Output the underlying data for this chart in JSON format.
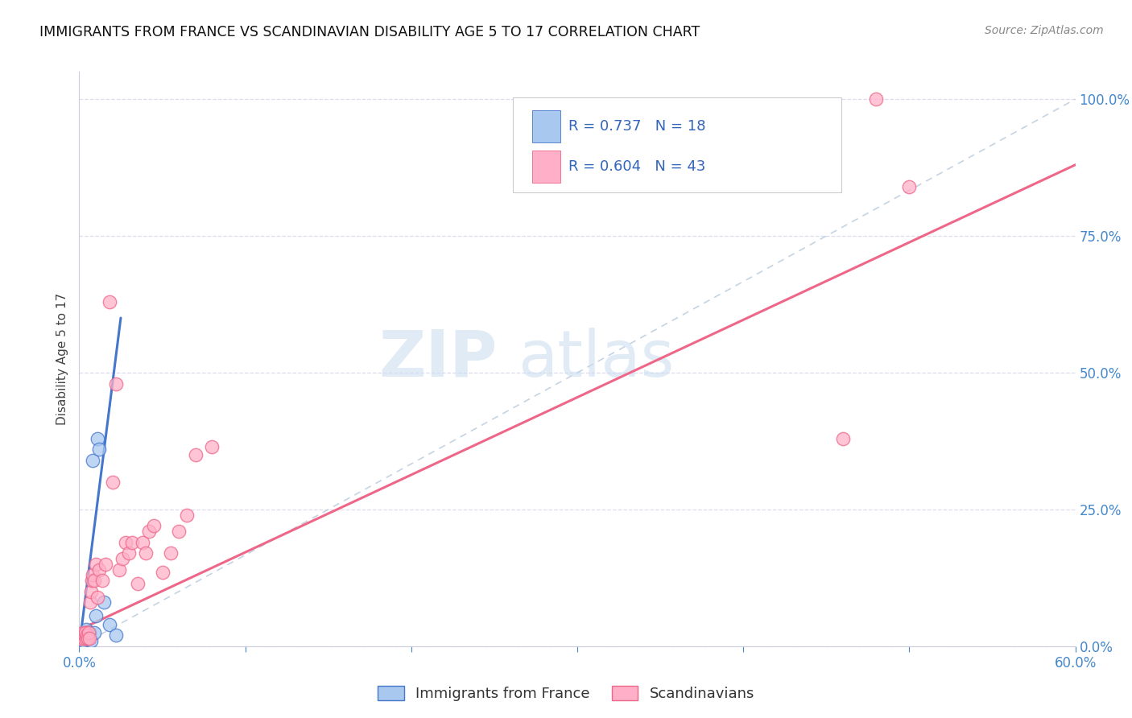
{
  "title": "IMMIGRANTS FROM FRANCE VS SCANDINAVIAN DISABILITY AGE 5 TO 17 CORRELATION CHART",
  "source": "Source: ZipAtlas.com",
  "ylabel": "Disability Age 5 to 17",
  "xlim": [
    0,
    60
  ],
  "ylim": [
    0,
    105
  ],
  "xticks": [
    0,
    10,
    20,
    30,
    40,
    50,
    60
  ],
  "xticklabels": [
    "0.0%",
    "",
    "",
    "",
    "",
    "",
    "60.0%"
  ],
  "yticks": [
    0,
    25,
    50,
    75,
    100
  ],
  "yticklabels": [
    "0.0%",
    "25.0%",
    "50.0%",
    "75.0%",
    "100.0%"
  ],
  "legend1_label": "Immigrants from France",
  "legend2_label": "Scandinavians",
  "r1": 0.737,
  "n1": 18,
  "r2": 0.604,
  "n2": 43,
  "color_france": "#A8C8F0",
  "color_scandi": "#FFB0C8",
  "color_france_line": "#4477CC",
  "color_scandi_line": "#EE6688",
  "color_diag": "#BBCCDD",
  "watermark_zip": "ZIP",
  "watermark_atlas": "atlas",
  "france_x": [
    0.1,
    0.15,
    0.2,
    0.25,
    0.3,
    0.35,
    0.4,
    0.5,
    0.6,
    0.7,
    0.8,
    0.9,
    1.0,
    1.1,
    1.2,
    1.5,
    1.8,
    2.2
  ],
  "france_y": [
    1.5,
    2.0,
    1.0,
    2.5,
    1.5,
    2.0,
    3.0,
    1.5,
    2.5,
    1.0,
    34.0,
    2.5,
    5.5,
    38.0,
    36.0,
    8.0,
    4.0,
    2.0
  ],
  "scandi_x": [
    0.1,
    0.15,
    0.2,
    0.25,
    0.3,
    0.35,
    0.4,
    0.45,
    0.5,
    0.55,
    0.6,
    0.65,
    0.7,
    0.75,
    0.8,
    0.9,
    1.0,
    1.1,
    1.2,
    1.4,
    1.6,
    1.8,
    2.0,
    2.2,
    2.4,
    2.6,
    2.8,
    3.0,
    3.2,
    3.5,
    3.8,
    4.0,
    4.2,
    4.5,
    5.0,
    5.5,
    6.0,
    6.5,
    7.0,
    8.0,
    46.0,
    48.0,
    50.0
  ],
  "scandi_y": [
    1.5,
    2.0,
    2.5,
    1.5,
    2.0,
    2.5,
    1.5,
    2.0,
    1.5,
    2.5,
    1.5,
    8.0,
    10.0,
    12.0,
    13.0,
    12.0,
    15.0,
    9.0,
    14.0,
    12.0,
    15.0,
    63.0,
    30.0,
    48.0,
    14.0,
    16.0,
    19.0,
    17.0,
    19.0,
    11.5,
    19.0,
    17.0,
    21.0,
    22.0,
    13.5,
    17.0,
    21.0,
    24.0,
    35.0,
    36.5,
    38.0,
    100.0,
    84.0
  ],
  "france_line_x": [
    0.0,
    2.5
  ],
  "france_line_y": [
    0.0,
    60.0
  ],
  "scandi_line_x": [
    0.0,
    60.0
  ],
  "scandi_line_y": [
    3.0,
    88.0
  ],
  "diag_line_x": [
    0.0,
    60.0
  ],
  "diag_line_y": [
    0.0,
    100.0
  ],
  "background_color": "#FFFFFF",
  "grid_color": "#DDDDEE",
  "tick_color": "#4488CC"
}
